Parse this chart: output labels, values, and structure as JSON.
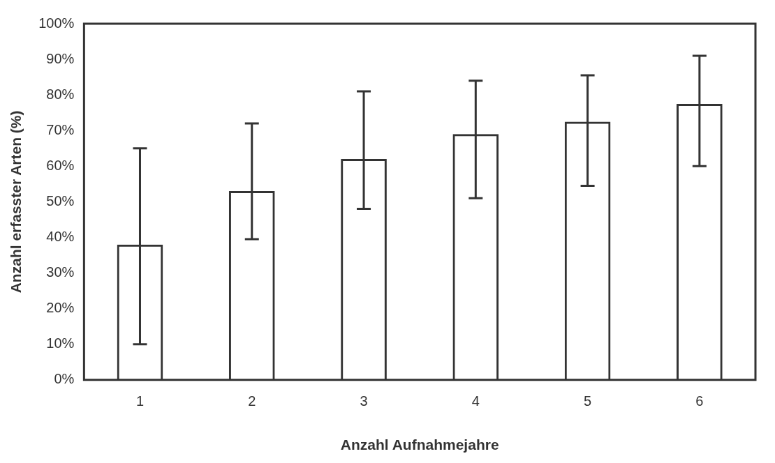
{
  "chart_data": {
    "type": "bar",
    "xlabel": "Anzahl Aufnahmejahre",
    "ylabel": "Anzahl erfasster Arten (%)",
    "categories": [
      "1",
      "2",
      "3",
      "4",
      "5",
      "6"
    ],
    "values": [
      38,
      53,
      62,
      69,
      72.5,
      77.5
    ],
    "errors": [
      [
        10,
        65
      ],
      [
        39.5,
        72
      ],
      [
        48,
        81
      ],
      [
        51,
        84
      ],
      [
        54.5,
        85.5
      ],
      [
        60,
        91
      ]
    ],
    "color": "#333333",
    "ylim": [
      0,
      100
    ],
    "yticks": [
      {
        "value": 0,
        "label": "0%"
      },
      {
        "value": 10,
        "label": "10%"
      },
      {
        "value": 20,
        "label": "20%"
      },
      {
        "value": 30,
        "label": "30%"
      },
      {
        "value": 40,
        "label": "40%"
      },
      {
        "value": 50,
        "label": "50%"
      },
      {
        "value": 60,
        "label": "60%"
      },
      {
        "value": 70,
        "label": "70%"
      },
      {
        "value": 80,
        "label": "80%"
      },
      {
        "value": 90,
        "label": "90%"
      },
      {
        "value": 100,
        "label": "100%"
      }
    ],
    "grid": false,
    "legend": false
  }
}
